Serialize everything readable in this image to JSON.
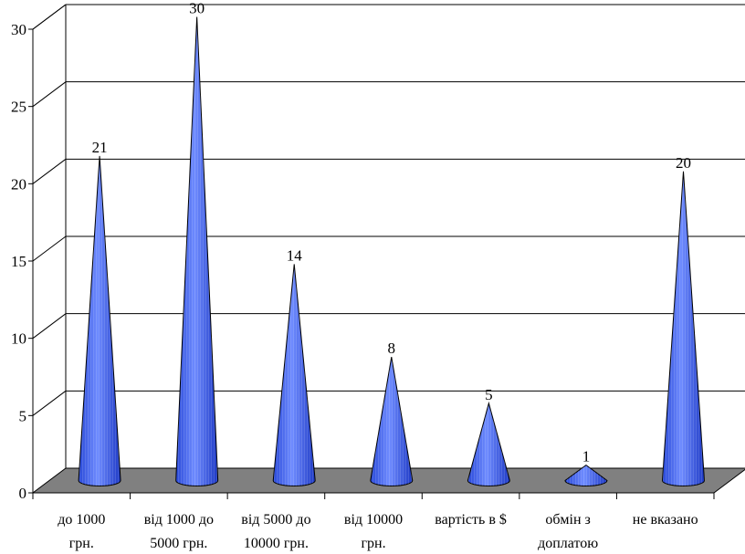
{
  "chart_data": {
    "type": "bar",
    "style": "3d-cone",
    "categories": [
      [
        "до 1000",
        "грн."
      ],
      [
        "від 1000 до",
        "5000 грн."
      ],
      [
        "від 5000 до",
        "10000 грн."
      ],
      [
        "від 10000",
        "грн."
      ],
      [
        "вартість в $"
      ],
      [
        "обмін з",
        "доплатою"
      ],
      [
        "не вказано"
      ]
    ],
    "values": [
      21,
      30,
      14,
      8,
      5,
      1,
      20
    ],
    "data_labels": [
      "21",
      "30",
      "14",
      "8",
      "5",
      "1",
      "20"
    ],
    "yticks": [
      "0",
      "5",
      "10",
      "15",
      "20",
      "25",
      "30"
    ],
    "ylim": [
      0,
      30
    ],
    "title": "",
    "xlabel": "",
    "ylabel": "",
    "grid": true,
    "legend": "none",
    "colors": {
      "cone": "#3a5ee8",
      "cone_light": "#7f9bff",
      "cone_dark": "#1f3fcf",
      "floor": "#808080",
      "grid": "#000000",
      "background": "#ffffff"
    }
  }
}
